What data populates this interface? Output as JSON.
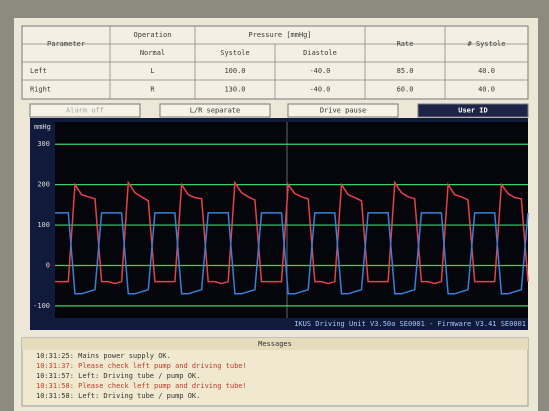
{
  "table": {
    "headers": [
      "Parameter",
      "Operation",
      "Pressure [mmHg]",
      "Rate",
      "# Systole"
    ],
    "subheaders": [
      "Normal",
      "Systole",
      "Diastole"
    ],
    "rows": [
      [
        "Left",
        "L",
        "100.0",
        "-40.0",
        "85.0",
        "40.0"
      ],
      [
        "Right",
        "R",
        "130.0",
        "-40.0",
        "60.0",
        "40.0"
      ]
    ]
  },
  "buttons": [
    "Alarm off",
    "L/R separate",
    "Drive pause",
    "User ID"
  ],
  "monitor": {
    "type": "line",
    "y_label": "mmHg",
    "ylim": [
      -130,
      355
    ],
    "yticks": [
      300,
      200,
      100,
      0,
      -100
    ],
    "grid": true,
    "status": "IKUS Driving Unit V3.50a SE0001 - Firmware V3.41 SE0001",
    "series": [
      {
        "color": "#e8404a",
        "values": [
          -40,
          -40,
          -40,
          200,
          175,
          170,
          165,
          -40,
          -40,
          -45,
          -40,
          205,
          180,
          170,
          160,
          -40,
          -40,
          -40,
          -40,
          200,
          175,
          168,
          165,
          -40,
          -40,
          -45,
          -40,
          205,
          180,
          170,
          162,
          -40,
          -40,
          -40,
          -40,
          200,
          178,
          170,
          165,
          -40,
          -40,
          -45,
          -40,
          200,
          175,
          168,
          160,
          -40,
          -40,
          -40,
          -40,
          205,
          180,
          170,
          165,
          -40,
          -40,
          -45,
          -40,
          200,
          175,
          170,
          162,
          -40,
          -40,
          -40,
          -40,
          200,
          178,
          168,
          165,
          -40
        ]
      },
      {
        "color": "#3a7fd8",
        "values": [
          130,
          130,
          130,
          -70,
          -70,
          -65,
          -60,
          130,
          130,
          130,
          130,
          -70,
          -70,
          -65,
          -60,
          130,
          130,
          130,
          130,
          -70,
          -70,
          -65,
          -60,
          130,
          130,
          130,
          130,
          -70,
          -70,
          -65,
          -60,
          130,
          130,
          130,
          130,
          -70,
          -70,
          -65,
          -60,
          130,
          130,
          130,
          130,
          -70,
          -70,
          -65,
          -60,
          130,
          130,
          130,
          130,
          -70,
          -70,
          -65,
          -60,
          130,
          130,
          130,
          130,
          -70,
          -70,
          -65,
          -60,
          130,
          130,
          130,
          130,
          -70,
          -70,
          -65,
          -60,
          130
        ]
      }
    ]
  },
  "messages": {
    "title": "Messages",
    "items": [
      {
        "text": "10:31:25: Mains power supply OK.",
        "color": "#333333"
      },
      {
        "text": "10:31:37: Please check left pump and driving tube!",
        "color": "#c0392b"
      },
      {
        "text": "10:31:57: Left: Driving tube / pump OK.",
        "color": "#333333"
      },
      {
        "text": "10:31:58: Please check left pump and driving tube!",
        "color": "#c0392b"
      },
      {
        "text": "10:31:58: Left: Driving tube / pump OK.",
        "color": "#333333"
      }
    ]
  }
}
